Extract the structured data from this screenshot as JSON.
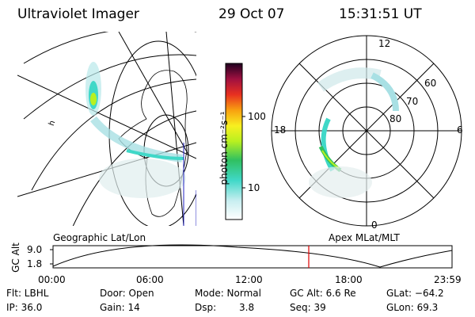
{
  "header": {
    "instrument": "Ultraviolet Imager",
    "date": "29 Oct 07",
    "time": "15:31:51 UT"
  },
  "colorbar": {
    "unit_label": "photon cm⁻²s⁻¹",
    "ticks": [
      "100",
      "10"
    ]
  },
  "geo_panel": {
    "label": "Geographic Lat/Lon",
    "lon_tick": "h"
  },
  "polar_panel": {
    "label": "Apex MLat/MLT",
    "mlt_labels": [
      "12",
      "18",
      "6",
      "0"
    ],
    "lat_labels": [
      "60",
      "70",
      "80"
    ]
  },
  "altitude_plot": {
    "ylabel": "GC Alt",
    "yticks": [
      "9.0",
      "1.8"
    ],
    "xticks": [
      "00:00",
      "06:00",
      "12:00",
      "18:00",
      "23:59"
    ],
    "marker_time": "15:31:51"
  },
  "info": {
    "row1": [
      "Flt: LBHL",
      "Door: Open",
      "Mode: Normal",
      "GC Alt: 6.6 Re",
      "GLat: −64.2"
    ],
    "row2": [
      "IP: 36.0",
      "Gain: 14",
      "Dsp:",
      "3.8",
      "Seq: 39",
      "GLon: 69.3"
    ]
  }
}
